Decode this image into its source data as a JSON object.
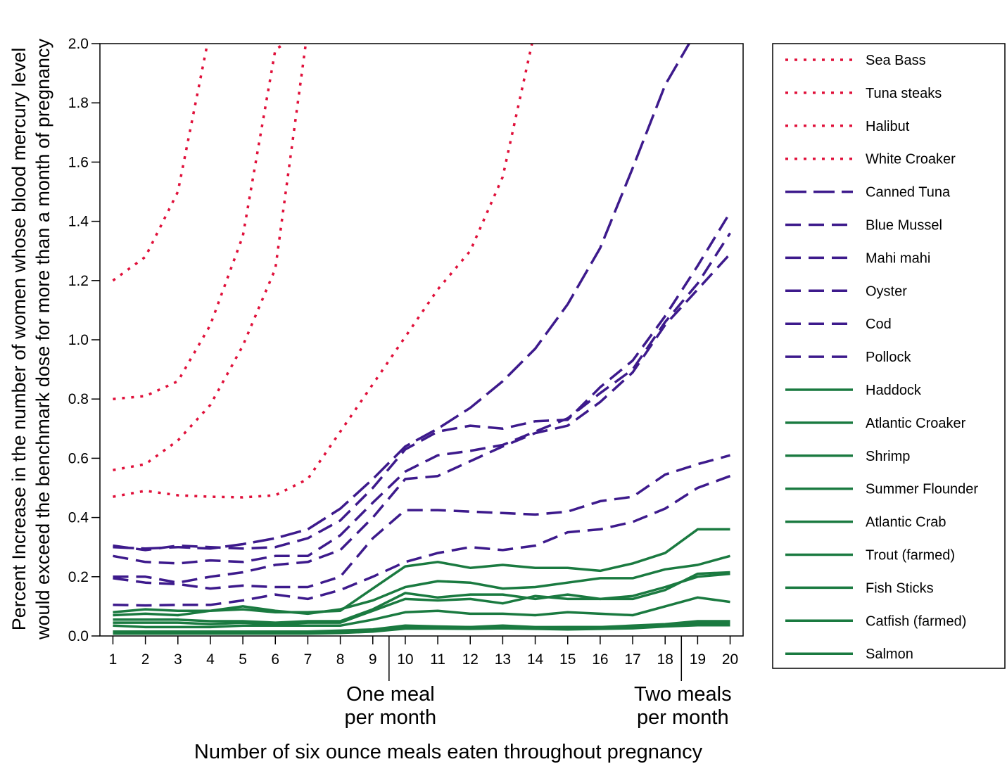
{
  "chart_data": {
    "type": "line",
    "xlabel": "Number of six ounce meals eaten throughout pregnancy",
    "ylabel_line1": "Percent Increase in the number of women whose blood mercury level",
    "ylabel_line2": "would exceed the benchmark dose for more than a month of pregnancy",
    "ylim": [
      0,
      2.0
    ],
    "xlim": [
      0.6,
      20.4
    ],
    "y_ticks": [
      "0.0",
      "0.2",
      "0.4",
      "0.6",
      "0.8",
      "1.0",
      "1.2",
      "1.4",
      "1.6",
      "1.8",
      "2.0"
    ],
    "x": [
      1,
      2,
      3,
      4,
      5,
      6,
      7,
      8,
      9,
      10,
      11,
      12,
      13,
      14,
      15,
      16,
      17,
      18,
      19,
      20
    ],
    "annotations": [
      {
        "line1": "One meal",
        "line2": "per month",
        "x": 9.5
      },
      {
        "line1": "Two meals",
        "line2": "per month",
        "x": 18.5
      }
    ],
    "legend_position": "right",
    "grid": false,
    "series": [
      {
        "name": "Sea Bass",
        "color": "#e0103a",
        "dash": "dot",
        "values": [
          1.2,
          1.28,
          1.5,
          2.05,
          null,
          null,
          null,
          null,
          null,
          null,
          null,
          null,
          null,
          null,
          null,
          null,
          null,
          null,
          null,
          null
        ]
      },
      {
        "name": "Tuna steaks",
        "color": "#e0103a",
        "dash": "dot",
        "values": [
          0.8,
          0.81,
          0.86,
          1.05,
          1.35,
          1.98,
          2.05,
          null,
          null,
          null,
          null,
          null,
          null,
          null,
          null,
          null,
          null,
          null,
          null,
          null
        ]
      },
      {
        "name": "Halibut",
        "color": "#e0103a",
        "dash": "dot",
        "values": [
          0.56,
          0.58,
          0.66,
          0.78,
          0.98,
          1.24,
          2.05,
          null,
          null,
          null,
          null,
          null,
          null,
          null,
          null,
          null,
          null,
          null,
          null,
          null
        ]
      },
      {
        "name": "White Croaker",
        "color": "#e0103a",
        "dash": "dot",
        "values": [
          0.47,
          0.49,
          0.475,
          0.47,
          0.468,
          0.475,
          0.53,
          0.69,
          0.85,
          1.01,
          1.17,
          1.3,
          1.55,
          2.05,
          null,
          null,
          null,
          null,
          null,
          null
        ]
      },
      {
        "name": "Canned Tuna",
        "color": "#3d1a8c",
        "dash": "longdash",
        "values": [
          0.3,
          0.295,
          0.3,
          0.295,
          0.31,
          0.33,
          0.36,
          0.43,
          0.53,
          0.64,
          0.7,
          0.77,
          0.86,
          0.97,
          1.12,
          1.31,
          1.58,
          1.86,
          2.05,
          null
        ]
      },
      {
        "name": "Blue Mussel",
        "color": "#3d1a8c",
        "dash": "dash",
        "values": [
          0.305,
          0.29,
          0.305,
          0.3,
          0.295,
          0.3,
          0.33,
          0.39,
          0.5,
          0.63,
          0.69,
          0.71,
          0.7,
          0.725,
          0.73,
          0.84,
          0.93,
          1.08,
          1.25,
          1.43
        ]
      },
      {
        "name": "Mahi mahi",
        "color": "#3d1a8c",
        "dash": "dash",
        "values": [
          0.27,
          0.25,
          0.245,
          0.255,
          0.25,
          0.27,
          0.27,
          0.34,
          0.45,
          0.555,
          0.61,
          0.625,
          0.645,
          0.69,
          0.735,
          0.82,
          0.9,
          1.06,
          1.19,
          1.36
        ]
      },
      {
        "name": "Oyster",
        "color": "#3d1a8c",
        "dash": "dash",
        "values": [
          0.2,
          0.2,
          0.18,
          0.2,
          0.215,
          0.24,
          0.25,
          0.29,
          0.4,
          0.53,
          0.54,
          0.59,
          0.64,
          0.685,
          0.71,
          0.79,
          0.89,
          1.05,
          1.17,
          1.29
        ]
      },
      {
        "name": "Cod",
        "color": "#3d1a8c",
        "dash": "dash",
        "values": [
          0.195,
          0.18,
          0.175,
          0.16,
          0.17,
          0.165,
          0.165,
          0.2,
          0.33,
          0.425,
          0.425,
          0.42,
          0.415,
          0.41,
          0.42,
          0.455,
          0.47,
          0.545,
          0.58,
          0.61
        ]
      },
      {
        "name": "Pollock",
        "color": "#3d1a8c",
        "dash": "dash",
        "values": [
          0.105,
          0.103,
          0.105,
          0.105,
          0.12,
          0.14,
          0.125,
          0.155,
          0.2,
          0.25,
          0.28,
          0.3,
          0.29,
          0.305,
          0.35,
          0.36,
          0.385,
          0.43,
          0.5,
          0.54
        ]
      },
      {
        "name": "Haddock",
        "color": "#1a7a40",
        "dash": "solid",
        "values": [
          0.08,
          0.09,
          0.085,
          0.085,
          0.09,
          0.08,
          0.08,
          0.085,
          0.16,
          0.235,
          0.25,
          0.23,
          0.24,
          0.23,
          0.23,
          0.22,
          0.245,
          0.28,
          0.36,
          0.36
        ]
      },
      {
        "name": "Atlantic Croaker",
        "color": "#1a7a40",
        "dash": "solid",
        "values": [
          0.07,
          0.075,
          0.07,
          0.085,
          0.1,
          0.085,
          0.075,
          0.09,
          0.12,
          0.165,
          0.185,
          0.18,
          0.16,
          0.165,
          0.18,
          0.195,
          0.195,
          0.225,
          0.24,
          0.27
        ]
      },
      {
        "name": "Shrimp",
        "color": "#1a7a40",
        "dash": "solid",
        "values": [
          0.055,
          0.055,
          0.055,
          0.05,
          0.05,
          0.045,
          0.05,
          0.05,
          0.09,
          0.145,
          0.13,
          0.14,
          0.14,
          0.125,
          0.14,
          0.125,
          0.125,
          0.155,
          0.21,
          0.215
        ]
      },
      {
        "name": "Summer Flounder",
        "color": "#1a7a40",
        "dash": "solid",
        "values": [
          0.045,
          0.045,
          0.045,
          0.04,
          0.045,
          0.04,
          0.045,
          0.045,
          0.085,
          0.125,
          0.12,
          0.125,
          0.11,
          0.135,
          0.125,
          0.125,
          0.135,
          0.165,
          0.2,
          0.21
        ]
      },
      {
        "name": "Atlantic Crab",
        "color": "#1a7a40",
        "dash": "solid",
        "values": [
          0.035,
          0.03,
          0.03,
          0.03,
          0.035,
          0.035,
          0.035,
          0.035,
          0.055,
          0.08,
          0.085,
          0.075,
          0.075,
          0.07,
          0.08,
          0.075,
          0.07,
          0.1,
          0.13,
          0.115
        ]
      },
      {
        "name": "Trout (farmed)",
        "color": "#1a7a40",
        "dash": "solid",
        "values": [
          0.015,
          0.015,
          0.015,
          0.015,
          0.015,
          0.015,
          0.015,
          0.018,
          0.022,
          0.035,
          0.032,
          0.03,
          0.035,
          0.03,
          0.03,
          0.03,
          0.035,
          0.04,
          0.05,
          0.05
        ]
      },
      {
        "name": "Fish Sticks",
        "color": "#1a7a40",
        "dash": "solid",
        "values": [
          0.012,
          0.012,
          0.012,
          0.012,
          0.012,
          0.012,
          0.012,
          0.015,
          0.02,
          0.03,
          0.03,
          0.03,
          0.032,
          0.028,
          0.03,
          0.03,
          0.03,
          0.038,
          0.045,
          0.045
        ]
      },
      {
        "name": "Catfish (farmed)",
        "color": "#1a7a40",
        "dash": "solid",
        "values": [
          0.01,
          0.01,
          0.01,
          0.01,
          0.01,
          0.01,
          0.01,
          0.012,
          0.018,
          0.028,
          0.028,
          0.026,
          0.03,
          0.026,
          0.024,
          0.026,
          0.028,
          0.035,
          0.04,
          0.04
        ]
      },
      {
        "name": "Salmon",
        "color": "#1a7a40",
        "dash": "solid",
        "values": [
          0.008,
          0.008,
          0.008,
          0.008,
          0.008,
          0.008,
          0.008,
          0.01,
          0.015,
          0.025,
          0.025,
          0.024,
          0.026,
          0.024,
          0.022,
          0.024,
          0.026,
          0.032,
          0.036,
          0.036
        ]
      }
    ]
  }
}
